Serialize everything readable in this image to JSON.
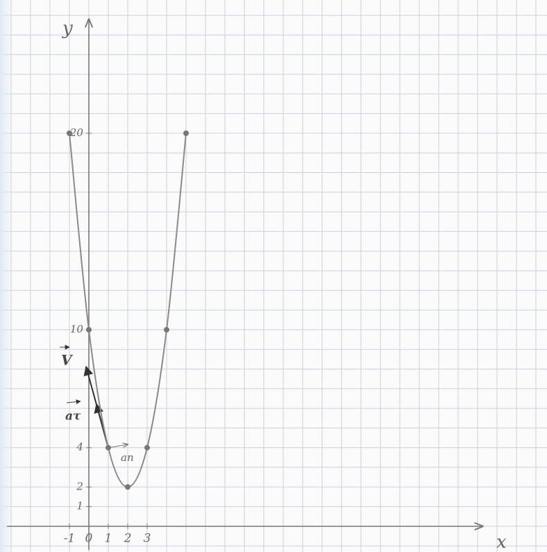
{
  "chart_data": {
    "type": "line",
    "x_label": "x",
    "y_label": "y",
    "x": [
      -1,
      0,
      1,
      2,
      3,
      4,
      5
    ],
    "series": [
      {
        "color": "#8a8a8a",
        "values": [
          20,
          10,
          4,
          2,
          4,
          10,
          20
        ]
      }
    ],
    "xlim": [
      -4.57,
      23.57
    ],
    "ylim": [
      -1.31,
      26.78
    ],
    "xticks": [
      -1,
      0,
      1,
      2,
      3
    ],
    "yticks": [
      1,
      2,
      4,
      10,
      20
    ],
    "annotations": [
      "V",
      "aτ",
      "an"
    ]
  }
}
